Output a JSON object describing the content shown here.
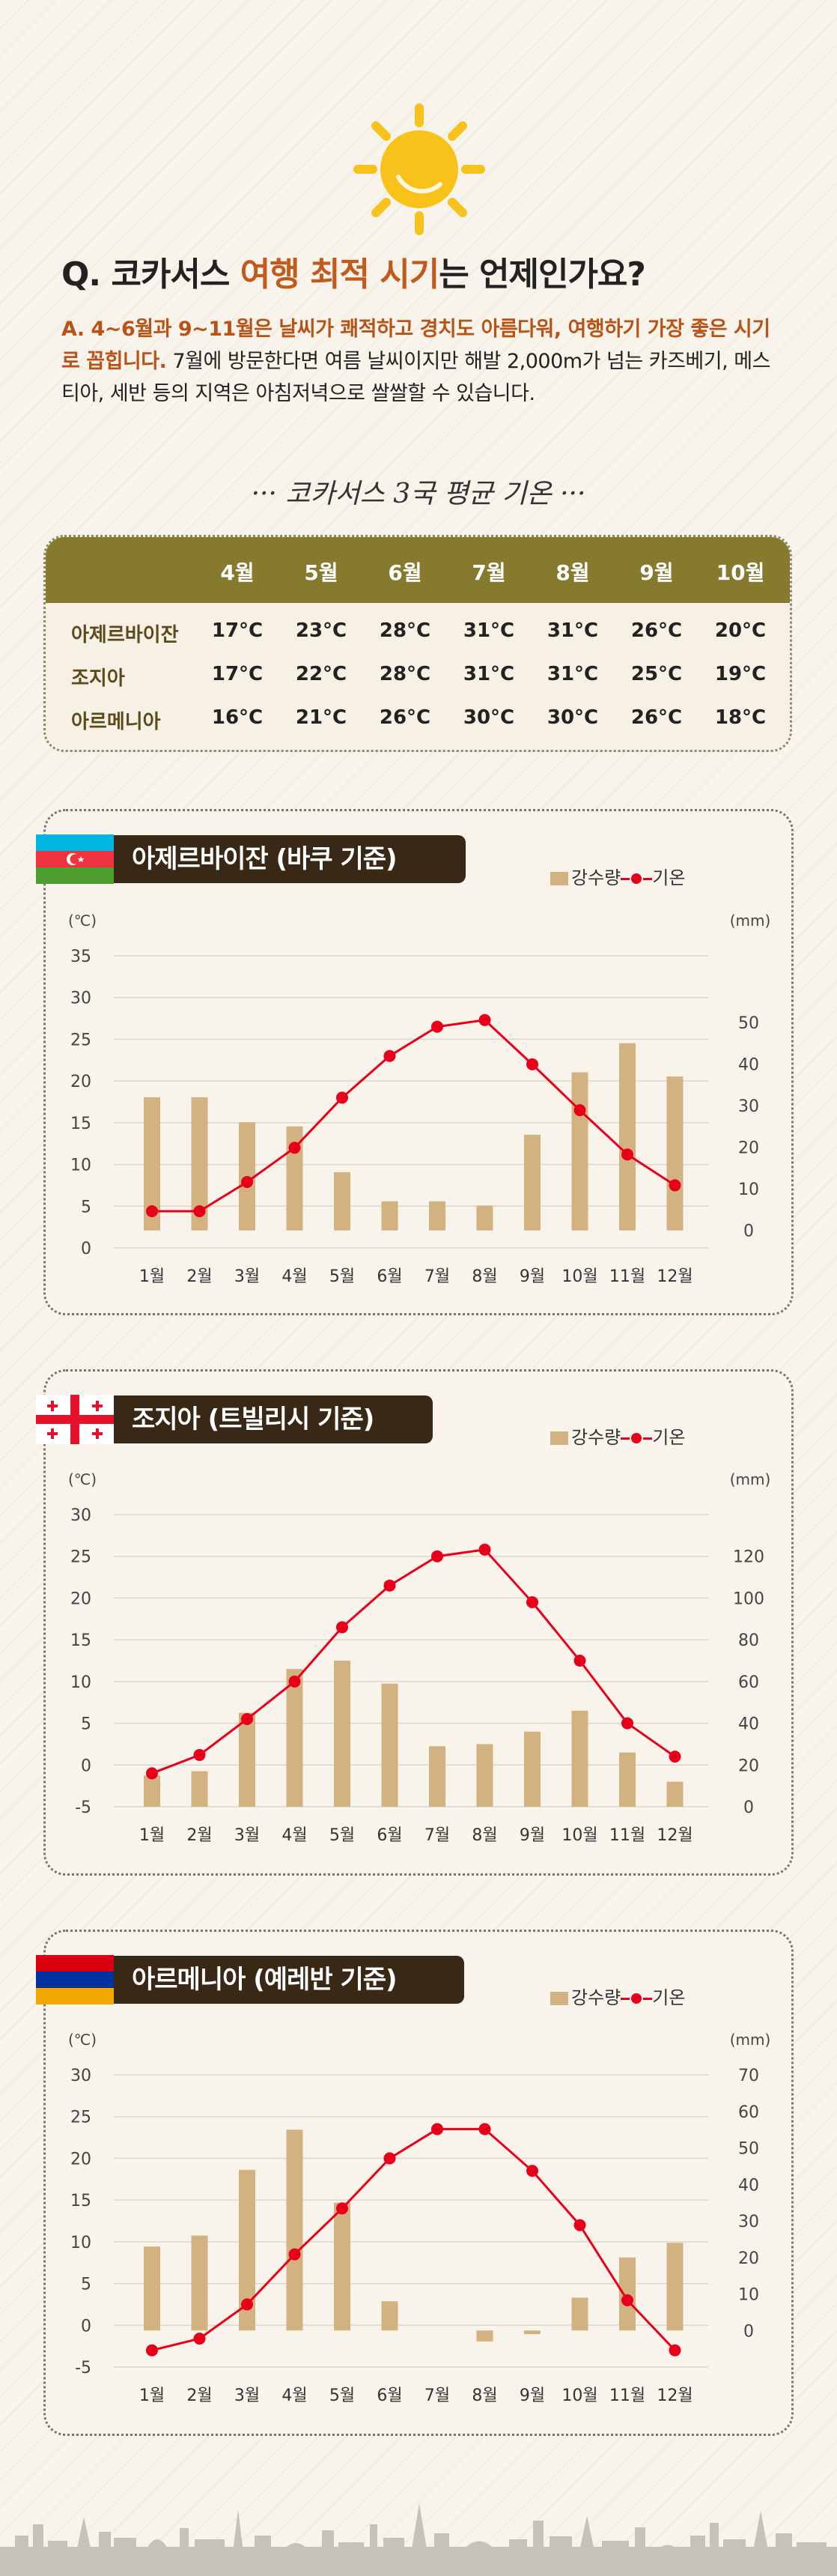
{
  "header": {
    "question_prefix": "Q. 코카서스 ",
    "question_highlight": "여행 최적 시기",
    "question_suffix": "는 언제인가요?",
    "answer_highlight": "A. 4~6월과 9~11월은 날씨가 쾌적하고 경치도 아름다워, 여행하기 가장 좋은 시기로 꼽힙니다.",
    "answer_rest": " 7월에 방문한다면 여름 날씨이지만 해발 2,000m가 넘는 카즈베기, 메스티아, 세반 등의 지역은 아침저녁으로 쌀쌀할 수 있습니다."
  },
  "summary_table": {
    "title": "··· 코카서스 3국 평균 기온 ···",
    "months": [
      "4월",
      "5월",
      "6월",
      "7월",
      "8월",
      "9월",
      "10월"
    ],
    "rows": [
      {
        "country": "아제르바이잔",
        "values": [
          "17°C",
          "23°C",
          "28°C",
          "31°C",
          "31°C",
          "26°C",
          "20°C"
        ]
      },
      {
        "country": "조지아",
        "values": [
          "17°C",
          "22°C",
          "28°C",
          "31°C",
          "31°C",
          "25°C",
          "19°C"
        ]
      },
      {
        "country": "아르메니아",
        "values": [
          "16°C",
          "21°C",
          "26°C",
          "30°C",
          "30°C",
          "26°C",
          "18°C"
        ]
      }
    ]
  },
  "legend": {
    "precip": "강수량",
    "temp": "기온"
  },
  "colors": {
    "bar": "#d3b282",
    "line": "#e8001a",
    "accent": "#c25a1d",
    "table_head": "#857a2e",
    "title_bar": "#3a2817"
  },
  "chart_data": [
    {
      "type": "bar+line",
      "title": "아제르바이잔 (바쿠 기준)",
      "flag": "azerbaijan-flag",
      "categories": [
        "1월",
        "2월",
        "3월",
        "4월",
        "5월",
        "6월",
        "7월",
        "8월",
        "9월",
        "10월",
        "11월",
        "12월"
      ],
      "left_unit": "(℃)",
      "right_unit": "(mm)",
      "left_ticks": [
        0,
        5,
        10,
        15,
        20,
        25,
        30,
        35
      ],
      "right_ticks": [
        0,
        10,
        20,
        30,
        40,
        50
      ],
      "ylim_left": [
        0,
        35
      ],
      "ylim_right": [
        -4.2,
        66
      ],
      "series": [
        {
          "name": "강수량",
          "axis": "right",
          "kind": "bar",
          "values": [
            32,
            32,
            26,
            25,
            14,
            7,
            7,
            6,
            23,
            38,
            45,
            37
          ]
        },
        {
          "name": "기온",
          "axis": "left",
          "kind": "line",
          "values": [
            4.4,
            4.4,
            7.9,
            12.0,
            18.0,
            23.0,
            26.5,
            27.3,
            22.0,
            16.5,
            11.2,
            7.5
          ]
        }
      ]
    },
    {
      "type": "bar+line",
      "title": "조지아 (트빌리시 기준)",
      "flag": "georgia-flag",
      "categories": [
        "1월",
        "2월",
        "3월",
        "4월",
        "5월",
        "6월",
        "7월",
        "8월",
        "9월",
        "10월",
        "11월",
        "12월"
      ],
      "left_unit": "(℃)",
      "right_unit": "(mm)",
      "left_ticks": [
        -5,
        0,
        5,
        10,
        15,
        20,
        25,
        30
      ],
      "right_ticks": [
        0,
        20,
        40,
        60,
        80,
        100,
        120
      ],
      "ylim_left": [
        -5,
        30
      ],
      "ylim_right": [
        0,
        140
      ],
      "series": [
        {
          "name": "강수량",
          "axis": "right",
          "kind": "bar",
          "values": [
            15,
            17,
            45,
            66,
            70,
            59,
            29,
            30,
            36,
            46,
            26,
            12
          ]
        },
        {
          "name": "기온",
          "axis": "left",
          "kind": "line",
          "values": [
            -1.0,
            1.2,
            5.5,
            10.0,
            16.5,
            21.5,
            25.0,
            25.8,
            19.5,
            12.5,
            5.0,
            1.0
          ]
        }
      ]
    },
    {
      "type": "bar+line",
      "title": "아르메니아 (예레반 기준)",
      "flag": "armenia-flag",
      "categories": [
        "1월",
        "2월",
        "3월",
        "4월",
        "5월",
        "6월",
        "7월",
        "8월",
        "9월",
        "10월",
        "11월",
        "12월"
      ],
      "left_unit": "(℃)",
      "right_unit": "(mm)",
      "left_ticks": [
        -5,
        0,
        5,
        10,
        15,
        20,
        25,
        30
      ],
      "right_ticks": [
        0,
        10,
        20,
        30,
        40,
        50,
        60,
        70
      ],
      "ylim_left": [
        -5,
        30
      ],
      "ylim_right": [
        -10,
        70
      ],
      "series": [
        {
          "name": "강수량",
          "axis": "right",
          "kind": "bar",
          "values": [
            23,
            26,
            44,
            55,
            35,
            8,
            0,
            -3,
            -1,
            9,
            20,
            24
          ]
        },
        {
          "name": "기온",
          "axis": "left",
          "kind": "line",
          "values": [
            -3.0,
            -1.6,
            2.5,
            8.5,
            14.0,
            20.0,
            23.5,
            23.5,
            18.5,
            12.0,
            3.0,
            -3.0
          ]
        }
      ]
    }
  ]
}
